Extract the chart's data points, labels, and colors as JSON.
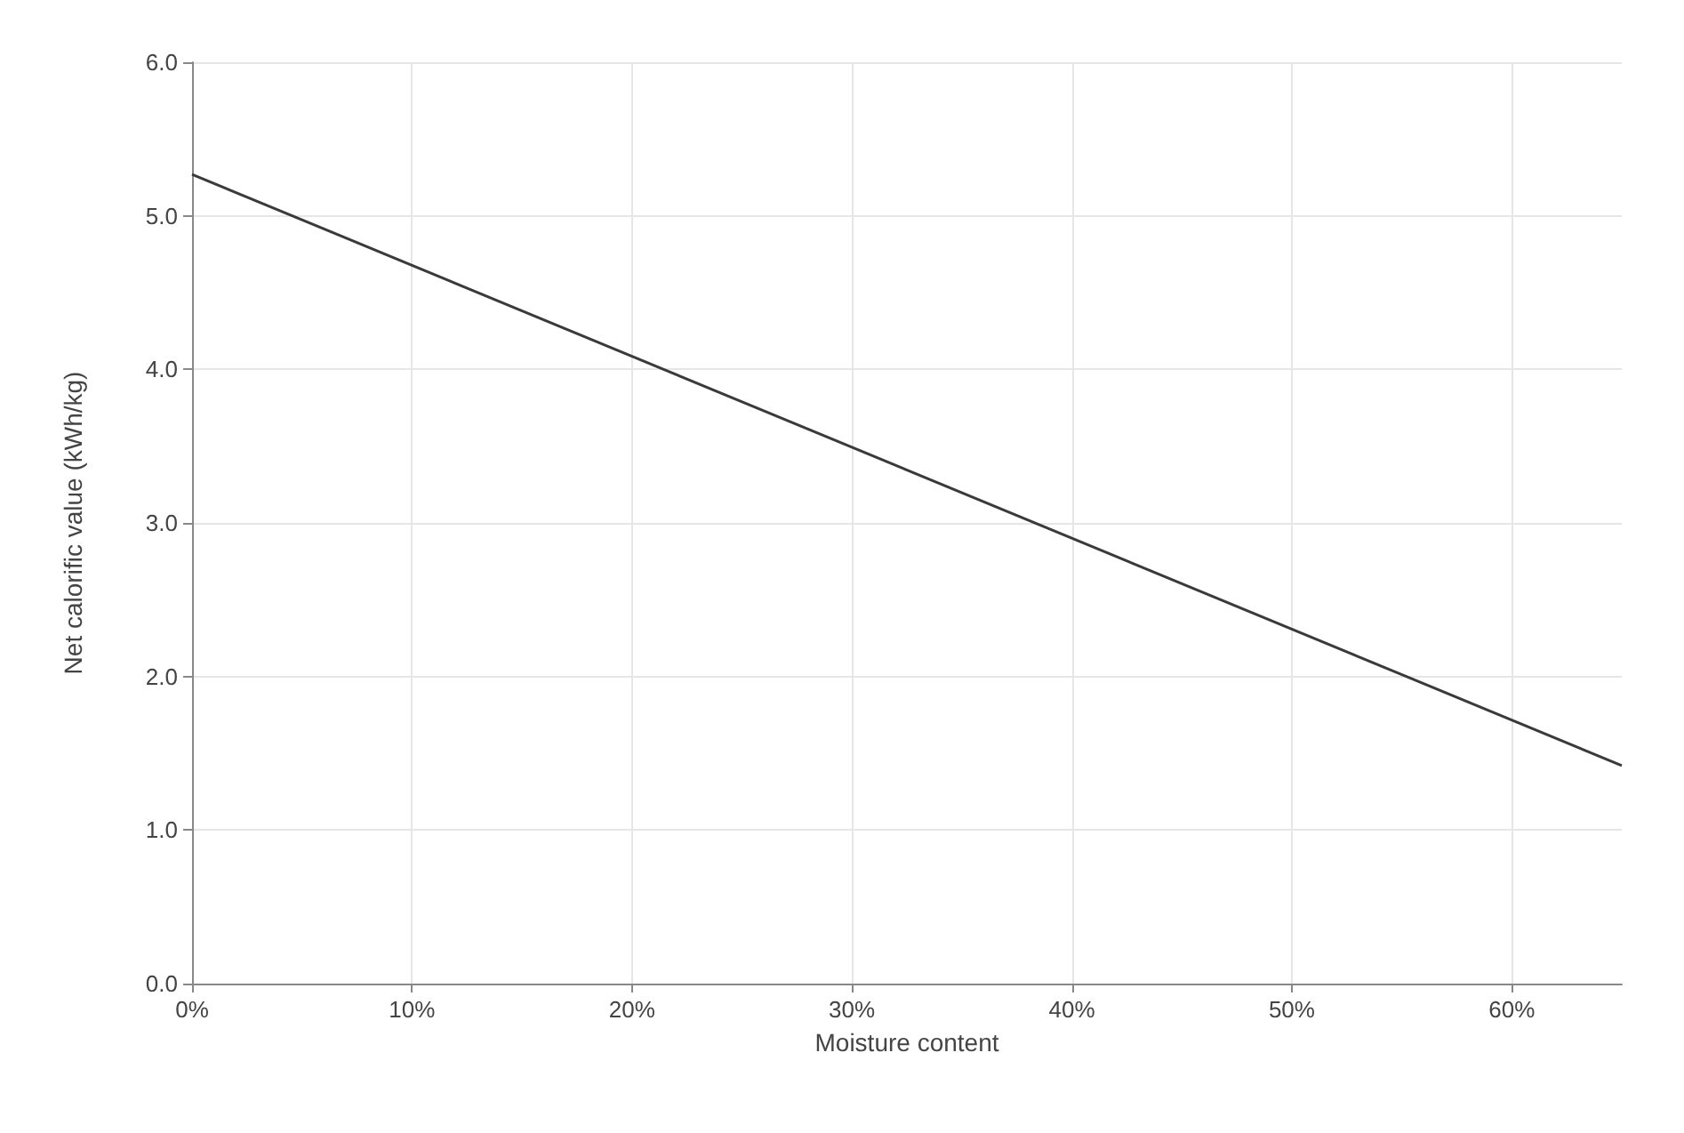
{
  "chart_data": {
    "type": "line",
    "xlabel": "Moisture content",
    "ylabel": "Net calorific value (kWh/kg)",
    "x": [
      0,
      65
    ],
    "series": [
      {
        "color": "#3a3a3a",
        "values": [
          5.27,
          1.42
        ]
      }
    ],
    "xlim": [
      0,
      65
    ],
    "xticks": [
      {
        "value": 0,
        "label": "0%"
      },
      {
        "value": 10,
        "label": "10%"
      },
      {
        "value": 20,
        "label": "20%"
      },
      {
        "value": 30,
        "label": "30%"
      },
      {
        "value": 40,
        "label": "40%"
      },
      {
        "value": 50,
        "label": "50%"
      },
      {
        "value": 60,
        "label": "60%"
      }
    ],
    "ylim": [
      0,
      6
    ],
    "yticks": [
      {
        "value": 0,
        "label": "0.0"
      },
      {
        "value": 1,
        "label": "1.0"
      },
      {
        "value": 2,
        "label": "2.0"
      },
      {
        "value": 3,
        "label": "3.0"
      },
      {
        "value": 4,
        "label": "4.0"
      },
      {
        "value": 5,
        "label": "5.0"
      },
      {
        "value": 6,
        "label": "6.0"
      }
    ],
    "grid": true,
    "marker": "none",
    "line_style": "solid"
  }
}
